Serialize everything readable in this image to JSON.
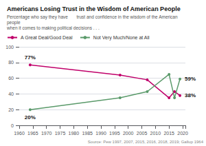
{
  "chart_data": {
    "type": "line",
    "title": "Americans Losing Trust in the Wisdom of American People",
    "subtitle": "Percentage who say they have       trust and confidence in the wisdom of the American people\nwhen it comes to making political decisions . . .",
    "source": "Source: Pew 1997, 2007, 2015, 2016, 2018, 2019; Gallup 1964",
    "x": [
      1964,
      1997,
      2007,
      2015,
      2017,
      2019
    ],
    "series": [
      {
        "name": "A Great Deal/Good Deal",
        "color": "#c0006a",
        "marker": "o",
        "values": [
          77,
          64,
          58,
          35,
          43,
          38
        ],
        "value_labels": [
          "77%",
          null,
          null,
          null,
          null,
          "38%"
        ]
      },
      {
        "name": "Not Very Much/None at All",
        "color": "#5a9a6a",
        "marker": "o",
        "values": [
          20,
          35,
          43,
          65,
          35,
          59
        ],
        "value_labels": [
          "20%",
          null,
          null,
          null,
          null,
          "59%"
        ]
      }
    ],
    "xlim": [
      1960,
      2021
    ],
    "xticks": [
      1960,
      1965,
      1970,
      1975,
      1980,
      1985,
      1990,
      1995,
      2000,
      2005,
      2010,
      2015,
      2020
    ],
    "ylim": [
      0,
      100
    ],
    "yticks": [
      0,
      20,
      40,
      60,
      80,
      100
    ],
    "grid": true,
    "legend": "top",
    "data_labels": true
  }
}
